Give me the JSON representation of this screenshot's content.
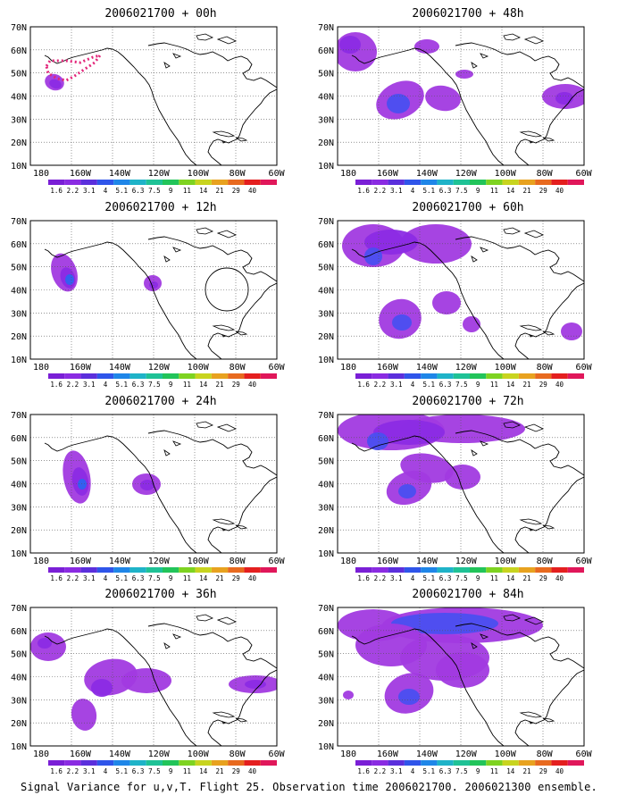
{
  "panels": [
    {
      "title": "2006021700 + 00h",
      "lead": "00h"
    },
    {
      "title": "2006021700 + 48h",
      "lead": "48h"
    },
    {
      "title": "2006021700 + 12h",
      "lead": "12h"
    },
    {
      "title": "2006021700 + 60h",
      "lead": "60h"
    },
    {
      "title": "2006021700 + 24h",
      "lead": "24h"
    },
    {
      "title": "2006021700 + 72h",
      "lead": "72h"
    },
    {
      "title": "2006021700 + 36h",
      "lead": "36h"
    },
    {
      "title": "2006021700 + 84h",
      "lead": "84h"
    }
  ],
  "axes": {
    "lat_labels": [
      "70N",
      "60N",
      "50N",
      "40N",
      "30N",
      "20N",
      "10N"
    ],
    "lon_labels": [
      "180",
      "160W",
      "140W",
      "120W",
      "100W",
      "80W",
      "60W"
    ]
  },
  "colorbar": {
    "labels": [
      "1.6",
      "2.2",
      "3.1",
      "4",
      "5.1",
      "6.3",
      "7.5",
      "9",
      "11",
      "14",
      "21",
      "29",
      "40"
    ],
    "colors": [
      "#7a1fd6",
      "#8a2be2",
      "#5b2fdc",
      "#2f55ea",
      "#1f86e8",
      "#1fb3c8",
      "#1fc296",
      "#22c45a",
      "#7ed321",
      "#c8d41f",
      "#e8a21f",
      "#e86a1f",
      "#e41f1f",
      "#e0175a"
    ]
  },
  "shade_colors": {
    "light": "#a13ae0",
    "mid": "#8b2be4",
    "dark": "#4a4ff0",
    "core": "#2e63f0"
  },
  "footer": "Signal Variance for u,v,T. Flight 25. Observation time 2006021700. 2006021300 ensemble."
}
